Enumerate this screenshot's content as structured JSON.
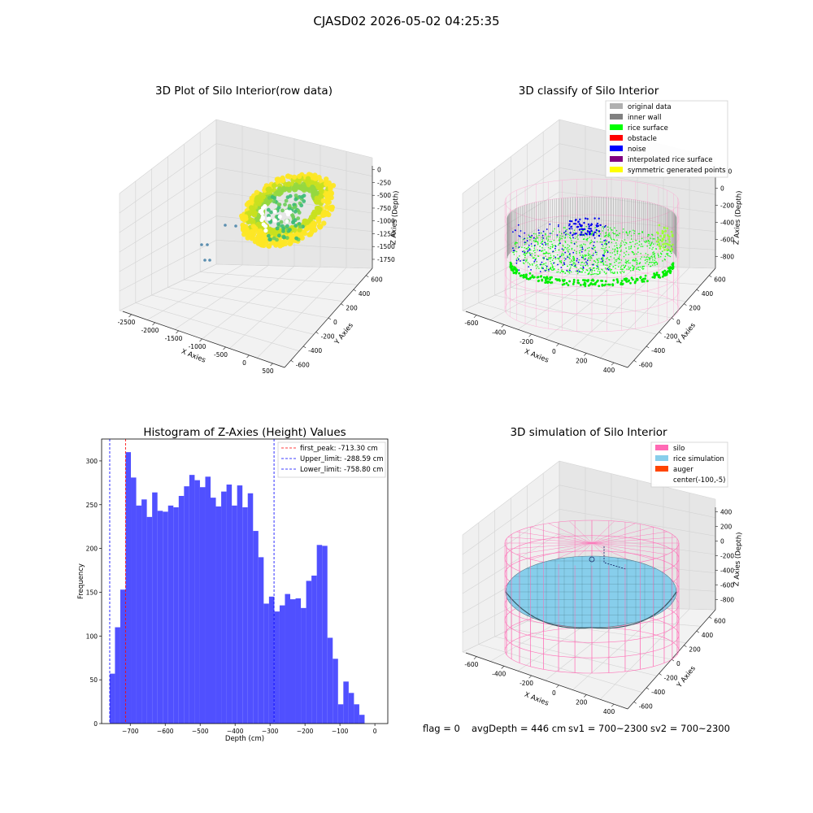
{
  "figure": {
    "suptitle": "CJASD02 2026-05-02 04:25:35",
    "status": {
      "flag": "flag = 0",
      "avg_depth": "avgDepth = 446 cm",
      "sv1": "sv1 = 700~2300",
      "sv2": "sv2 = 700~2300"
    }
  },
  "colors": {
    "histogram_bar": "#5050ff",
    "first_peak_line": "#ff0000",
    "limit_lines": "#0000ff",
    "silo_wire": "#ff69b4",
    "rice_sim": "#87ceeb",
    "auger": "#ff4500"
  },
  "chart_data": [
    {
      "type": "scatter",
      "projection": "3d",
      "title": "3D Plot of Silo Interior(row data)",
      "xlabel": "X Axies",
      "ylabel": "Y Axies",
      "zlabel": "Z Axies (Depth)",
      "x_ticks": [
        "-2500",
        "-2000",
        "-1500",
        "-1000",
        "-500",
        "0",
        "500"
      ],
      "y_ticks": [
        "-600",
        "-400",
        "-200",
        "0",
        "200",
        "400",
        "600"
      ],
      "z_ticks": [
        "0",
        "-250",
        "-500",
        "-750",
        "-1000",
        "-1250",
        "-1500",
        "-1750"
      ],
      "colormap": "viridis",
      "description_series": "point cloud colored by depth"
    },
    {
      "type": "scatter",
      "projection": "3d",
      "title": "3D classify of Silo Interior",
      "xlabel": "X Axies",
      "ylabel": "Y Axies",
      "zlabel": "Z Axies (Depth)",
      "x_ticks": [
        "-600",
        "-400",
        "-200",
        "0",
        "200",
        "400"
      ],
      "y_ticks": [
        "-600",
        "-400",
        "-200",
        "0",
        "200",
        "400",
        "600"
      ],
      "z_ticks": [
        "200",
        "0",
        "-200",
        "-400",
        "-600",
        "-800"
      ],
      "z_ticks_top": "0",
      "legend_position": "top-right",
      "legend": [
        {
          "label": "original data",
          "color": "#b0b0b0"
        },
        {
          "label": "inner wall",
          "color": "#808080"
        },
        {
          "label": "rice surface",
          "color": "#00ff00"
        },
        {
          "label": "obstacle",
          "color": "#ff0000"
        },
        {
          "label": "noise",
          "color": "#0000ff"
        },
        {
          "label": "interpolated rice surface",
          "color": "#800080"
        },
        {
          "label": "symmetric generated points",
          "color": "#ffff00"
        }
      ]
    },
    {
      "type": "bar",
      "title": "Histogram of Z-Axies (Height) Values",
      "xlabel": "Depth (cm)",
      "ylabel": "Frequency",
      "x_ticks": [
        -700,
        -600,
        -500,
        -400,
        -300,
        -200,
        -100,
        0
      ],
      "y_ticks": [
        0,
        50,
        100,
        150,
        200,
        250,
        300
      ],
      "xlim": [
        -782,
        37
      ],
      "ylim": [
        0,
        325
      ],
      "bin_start": -759,
      "bin_width": 15.2,
      "values": [
        57,
        110,
        153,
        310,
        281,
        249,
        256,
        236,
        264,
        243,
        242,
        249,
        247,
        260,
        271,
        284,
        278,
        270,
        282,
        258,
        248,
        265,
        273,
        249,
        272,
        247,
        263,
        220,
        190,
        137,
        145,
        128,
        135,
        148,
        142,
        143,
        132,
        163,
        169,
        204,
        203,
        98,
        74,
        22,
        48,
        35,
        22,
        10
      ],
      "legend_position": "top-right",
      "vlines": [
        {
          "label": "first_peak: -713.30 cm",
          "x": -713.3,
          "color": "#ff0000"
        },
        {
          "label": "Upper_limit: -288.59 cm",
          "x": -288.59,
          "color": "#0000ff"
        },
        {
          "label": "Lower_limit: -758.80 cm",
          "x": -758.8,
          "color": "#0000ff"
        }
      ]
    },
    {
      "type": "scatter",
      "projection": "3d",
      "title": "3D simulation of Silo Interior",
      "xlabel": "X Axies",
      "ylabel": "Y Axies",
      "zlabel": "Z Axies (Depth)",
      "x_ticks": [
        "-600",
        "-400",
        "-200",
        "0",
        "200",
        "400"
      ],
      "y_ticks": [
        "-600",
        "-400",
        "-200",
        "0",
        "200",
        "400",
        "600"
      ],
      "z_ticks": [
        "400",
        "200",
        "0",
        "-200",
        "-400",
        "-600",
        "-800"
      ],
      "legend_position": "top-right",
      "legend": [
        {
          "label": "silo",
          "color": "#ff69b4"
        },
        {
          "label": "rice simulation",
          "color": "#87ceeb"
        },
        {
          "label": "auger",
          "color": "#ff4500"
        },
        {
          "label": "center(-100,-5)",
          "color": ""
        }
      ]
    }
  ]
}
